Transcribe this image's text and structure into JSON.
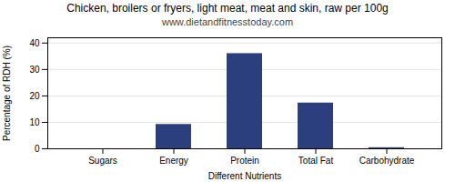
{
  "chart_data": {
    "type": "bar",
    "title": "Chicken, broilers or fryers, light meat, meat and skin, raw per 100g",
    "subtitle": "www.dietandfitnesstoday.com",
    "categories": [
      "Sugars",
      "Energy",
      "Protein",
      "Total Fat",
      "Carbohydrate"
    ],
    "values": [
      0,
      9.2,
      36.0,
      17.3,
      0.4
    ],
    "color": "#2b3f7e",
    "xlabel": "Different Nutrients",
    "ylabel": "Percentage of RDH (%)",
    "ylim": [
      0,
      42
    ],
    "yticks": [
      0,
      10,
      20,
      30,
      40
    ],
    "grid": true
  }
}
